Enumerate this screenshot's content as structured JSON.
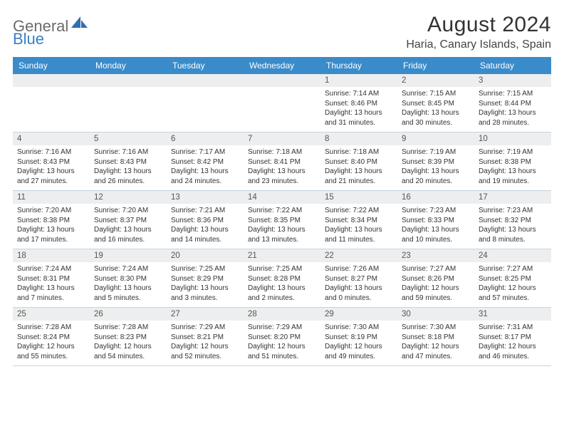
{
  "logo": {
    "text1": "General",
    "text2": "Blue"
  },
  "title": "August 2024",
  "location": "Haria, Canary Islands, Spain",
  "dow_bg": "#3a8bc9",
  "daynum_bg": "#eceeef",
  "row_border": "#c8d4de",
  "days_of_week": [
    "Sunday",
    "Monday",
    "Tuesday",
    "Wednesday",
    "Thursday",
    "Friday",
    "Saturday"
  ],
  "weeks": [
    [
      {
        "n": "",
        "sr": "",
        "ss": "",
        "dl": ""
      },
      {
        "n": "",
        "sr": "",
        "ss": "",
        "dl": ""
      },
      {
        "n": "",
        "sr": "",
        "ss": "",
        "dl": ""
      },
      {
        "n": "",
        "sr": "",
        "ss": "",
        "dl": ""
      },
      {
        "n": "1",
        "sr": "Sunrise: 7:14 AM",
        "ss": "Sunset: 8:46 PM",
        "dl": "Daylight: 13 hours and 31 minutes."
      },
      {
        "n": "2",
        "sr": "Sunrise: 7:15 AM",
        "ss": "Sunset: 8:45 PM",
        "dl": "Daylight: 13 hours and 30 minutes."
      },
      {
        "n": "3",
        "sr": "Sunrise: 7:15 AM",
        "ss": "Sunset: 8:44 PM",
        "dl": "Daylight: 13 hours and 28 minutes."
      }
    ],
    [
      {
        "n": "4",
        "sr": "Sunrise: 7:16 AM",
        "ss": "Sunset: 8:43 PM",
        "dl": "Daylight: 13 hours and 27 minutes."
      },
      {
        "n": "5",
        "sr": "Sunrise: 7:16 AM",
        "ss": "Sunset: 8:43 PM",
        "dl": "Daylight: 13 hours and 26 minutes."
      },
      {
        "n": "6",
        "sr": "Sunrise: 7:17 AM",
        "ss": "Sunset: 8:42 PM",
        "dl": "Daylight: 13 hours and 24 minutes."
      },
      {
        "n": "7",
        "sr": "Sunrise: 7:18 AM",
        "ss": "Sunset: 8:41 PM",
        "dl": "Daylight: 13 hours and 23 minutes."
      },
      {
        "n": "8",
        "sr": "Sunrise: 7:18 AM",
        "ss": "Sunset: 8:40 PM",
        "dl": "Daylight: 13 hours and 21 minutes."
      },
      {
        "n": "9",
        "sr": "Sunrise: 7:19 AM",
        "ss": "Sunset: 8:39 PM",
        "dl": "Daylight: 13 hours and 20 minutes."
      },
      {
        "n": "10",
        "sr": "Sunrise: 7:19 AM",
        "ss": "Sunset: 8:38 PM",
        "dl": "Daylight: 13 hours and 19 minutes."
      }
    ],
    [
      {
        "n": "11",
        "sr": "Sunrise: 7:20 AM",
        "ss": "Sunset: 8:38 PM",
        "dl": "Daylight: 13 hours and 17 minutes."
      },
      {
        "n": "12",
        "sr": "Sunrise: 7:20 AM",
        "ss": "Sunset: 8:37 PM",
        "dl": "Daylight: 13 hours and 16 minutes."
      },
      {
        "n": "13",
        "sr": "Sunrise: 7:21 AM",
        "ss": "Sunset: 8:36 PM",
        "dl": "Daylight: 13 hours and 14 minutes."
      },
      {
        "n": "14",
        "sr": "Sunrise: 7:22 AM",
        "ss": "Sunset: 8:35 PM",
        "dl": "Daylight: 13 hours and 13 minutes."
      },
      {
        "n": "15",
        "sr": "Sunrise: 7:22 AM",
        "ss": "Sunset: 8:34 PM",
        "dl": "Daylight: 13 hours and 11 minutes."
      },
      {
        "n": "16",
        "sr": "Sunrise: 7:23 AM",
        "ss": "Sunset: 8:33 PM",
        "dl": "Daylight: 13 hours and 10 minutes."
      },
      {
        "n": "17",
        "sr": "Sunrise: 7:23 AM",
        "ss": "Sunset: 8:32 PM",
        "dl": "Daylight: 13 hours and 8 minutes."
      }
    ],
    [
      {
        "n": "18",
        "sr": "Sunrise: 7:24 AM",
        "ss": "Sunset: 8:31 PM",
        "dl": "Daylight: 13 hours and 7 minutes."
      },
      {
        "n": "19",
        "sr": "Sunrise: 7:24 AM",
        "ss": "Sunset: 8:30 PM",
        "dl": "Daylight: 13 hours and 5 minutes."
      },
      {
        "n": "20",
        "sr": "Sunrise: 7:25 AM",
        "ss": "Sunset: 8:29 PM",
        "dl": "Daylight: 13 hours and 3 minutes."
      },
      {
        "n": "21",
        "sr": "Sunrise: 7:25 AM",
        "ss": "Sunset: 8:28 PM",
        "dl": "Daylight: 13 hours and 2 minutes."
      },
      {
        "n": "22",
        "sr": "Sunrise: 7:26 AM",
        "ss": "Sunset: 8:27 PM",
        "dl": "Daylight: 13 hours and 0 minutes."
      },
      {
        "n": "23",
        "sr": "Sunrise: 7:27 AM",
        "ss": "Sunset: 8:26 PM",
        "dl": "Daylight: 12 hours and 59 minutes."
      },
      {
        "n": "24",
        "sr": "Sunrise: 7:27 AM",
        "ss": "Sunset: 8:25 PM",
        "dl": "Daylight: 12 hours and 57 minutes."
      }
    ],
    [
      {
        "n": "25",
        "sr": "Sunrise: 7:28 AM",
        "ss": "Sunset: 8:24 PM",
        "dl": "Daylight: 12 hours and 55 minutes."
      },
      {
        "n": "26",
        "sr": "Sunrise: 7:28 AM",
        "ss": "Sunset: 8:23 PM",
        "dl": "Daylight: 12 hours and 54 minutes."
      },
      {
        "n": "27",
        "sr": "Sunrise: 7:29 AM",
        "ss": "Sunset: 8:21 PM",
        "dl": "Daylight: 12 hours and 52 minutes."
      },
      {
        "n": "28",
        "sr": "Sunrise: 7:29 AM",
        "ss": "Sunset: 8:20 PM",
        "dl": "Daylight: 12 hours and 51 minutes."
      },
      {
        "n": "29",
        "sr": "Sunrise: 7:30 AM",
        "ss": "Sunset: 8:19 PM",
        "dl": "Daylight: 12 hours and 49 minutes."
      },
      {
        "n": "30",
        "sr": "Sunrise: 7:30 AM",
        "ss": "Sunset: 8:18 PM",
        "dl": "Daylight: 12 hours and 47 minutes."
      },
      {
        "n": "31",
        "sr": "Sunrise: 7:31 AM",
        "ss": "Sunset: 8:17 PM",
        "dl": "Daylight: 12 hours and 46 minutes."
      }
    ]
  ]
}
